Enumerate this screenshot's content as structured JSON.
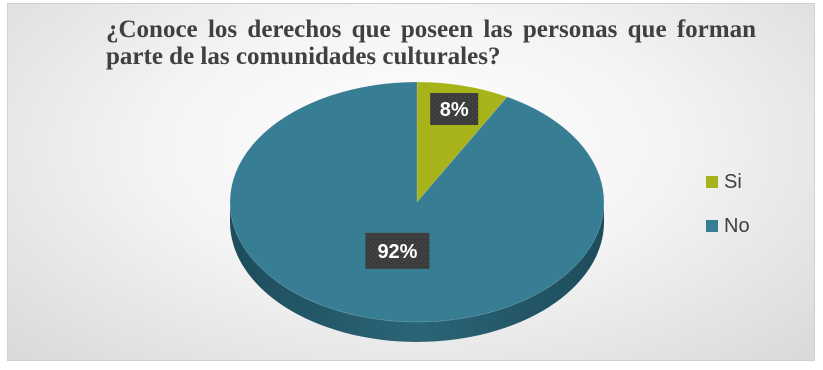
{
  "chart_data": {
    "type": "pie",
    "title": "¿Conoce los derechos que poseen las personas que forman parte de las comunidades culturales?",
    "categories": [
      "Si",
      "No"
    ],
    "values": [
      8,
      92
    ],
    "data_labels": [
      "8%",
      "92%"
    ],
    "colors": [
      "#A8B319",
      "#377D94"
    ],
    "legend_position": "right"
  }
}
